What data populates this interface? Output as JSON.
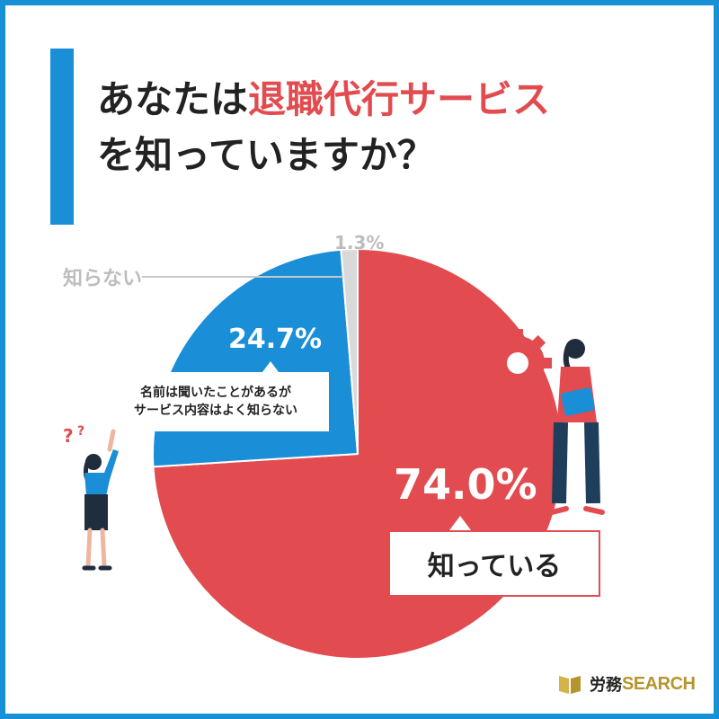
{
  "title": {
    "line1_pre": "あなたは",
    "line1_accent": "退職代行サービス",
    "line2": "を知っていますか？"
  },
  "colors": {
    "frame": "#1890d6",
    "accent_red": "#e24b4f",
    "accent_blue": "#1a8fd8",
    "gray": "#d9d9d9",
    "logo_gold": "#b5952f"
  },
  "chart_data": {
    "type": "pie",
    "title": "あなたは退職代行サービスを知っていますか？",
    "slices": [
      {
        "label": "知っている",
        "value": 74.0,
        "display": "74.0%",
        "color": "#e24b4f"
      },
      {
        "label": "名前は聞いたことがあるがサービス内容はよく知らない",
        "value": 24.7,
        "display": "24.7%",
        "color": "#1a8fd8"
      },
      {
        "label": "知らない",
        "value": 1.3,
        "display": "1.3%",
        "color": "#d9d9d9"
      }
    ]
  },
  "labels": {
    "know": "知っている",
    "name_line1": "名前は聞いたことがあるが",
    "name_line2": "サービス内容はよく知らない",
    "not_know": "知らない"
  },
  "logo": {
    "jp": "労務",
    "en": "SEARCH"
  },
  "icons": {
    "logo": "book-icon",
    "question": "question-mark-icon",
    "gear": "gear-icon"
  }
}
